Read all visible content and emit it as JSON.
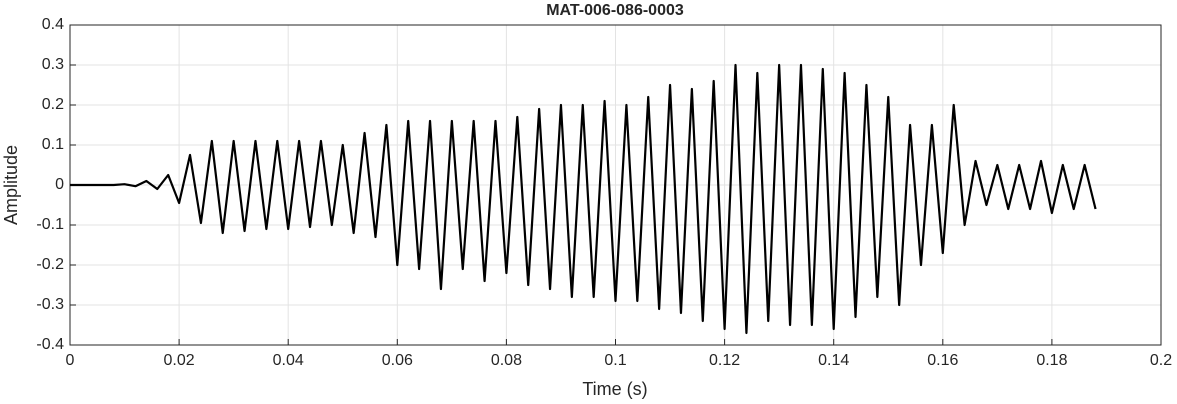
{
  "chart_data": {
    "type": "line",
    "title": "MAT-006-086-0003",
    "x_label": "Time (s)",
    "y_label": "Amplitude",
    "xlim": [
      0,
      0.2
    ],
    "ylim": [
      -0.4,
      0.4
    ],
    "xticks": [
      0,
      0.02,
      0.04,
      0.06,
      0.08,
      0.1,
      0.12,
      0.14,
      0.16,
      0.18,
      0.2
    ],
    "yticks": [
      -0.4,
      -0.3,
      -0.2,
      -0.1,
      0,
      0.1,
      0.2,
      0.3,
      0.4
    ],
    "grid": true,
    "series": [
      {
        "color": "#000000",
        "x": [
          0,
          0.008,
          0.01,
          0.012,
          0.014,
          0.016,
          0.018,
          0.02,
          0.022,
          0.024,
          0.026,
          0.028,
          0.03,
          0.032,
          0.034,
          0.036,
          0.038,
          0.04,
          0.042,
          0.044,
          0.046,
          0.048,
          0.05,
          0.052,
          0.054,
          0.056,
          0.058,
          0.06,
          0.062,
          0.064,
          0.066,
          0.068,
          0.07,
          0.072,
          0.074,
          0.076,
          0.078,
          0.08,
          0.082,
          0.084,
          0.086,
          0.088,
          0.09,
          0.092,
          0.094,
          0.096,
          0.098,
          0.1,
          0.102,
          0.104,
          0.106,
          0.108,
          0.11,
          0.112,
          0.114,
          0.116,
          0.118,
          0.12,
          0.122,
          0.124,
          0.126,
          0.128,
          0.13,
          0.132,
          0.134,
          0.136,
          0.138,
          0.14,
          0.142,
          0.144,
          0.146,
          0.148,
          0.15,
          0.152,
          0.154,
          0.156,
          0.158,
          0.16,
          0.162,
          0.164,
          0.166,
          0.168,
          0.17,
          0.172,
          0.174,
          0.176,
          0.178,
          0.18,
          0.182,
          0.184,
          0.186,
          0.188
        ],
        "values": [
          0,
          0,
          0.002,
          -0.003,
          0.01,
          -0.01,
          0.025,
          -0.045,
          0.075,
          -0.095,
          0.11,
          -0.12,
          0.11,
          -0.115,
          0.11,
          -0.11,
          0.11,
          -0.11,
          0.11,
          -0.105,
          0.11,
          -0.1,
          0.1,
          -0.12,
          0.13,
          -0.13,
          0.15,
          -0.2,
          0.16,
          -0.21,
          0.16,
          -0.26,
          0.16,
          -0.21,
          0.16,
          -0.24,
          0.16,
          -0.22,
          0.17,
          -0.25,
          0.19,
          -0.26,
          0.2,
          -0.28,
          0.2,
          -0.28,
          0.21,
          -0.29,
          0.2,
          -0.29,
          0.22,
          -0.31,
          0.25,
          -0.32,
          0.24,
          -0.34,
          0.26,
          -0.36,
          0.3,
          -0.37,
          0.28,
          -0.34,
          0.3,
          -0.35,
          0.3,
          -0.35,
          0.29,
          -0.36,
          0.28,
          -0.33,
          0.25,
          -0.28,
          0.22,
          -0.3,
          0.15,
          -0.2,
          0.15,
          -0.17,
          0.2,
          -0.1,
          0.06,
          -0.05,
          0.05,
          -0.06,
          0.05,
          -0.06,
          0.06,
          -0.07,
          0.05,
          -0.06,
          0.05,
          -0.06
        ]
      }
    ]
  }
}
